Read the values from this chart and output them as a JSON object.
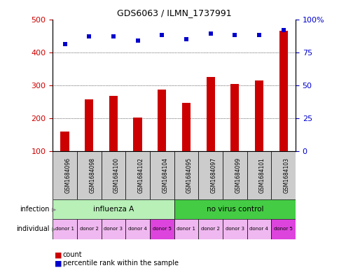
{
  "title": "GDS6063 / ILMN_1737991",
  "samples": [
    "GSM1684096",
    "GSM1684098",
    "GSM1684100",
    "GSM1684102",
    "GSM1684104",
    "GSM1684095",
    "GSM1684097",
    "GSM1684099",
    "GSM1684101",
    "GSM1684103"
  ],
  "counts": [
    160,
    258,
    268,
    202,
    287,
    246,
    326,
    303,
    315,
    465
  ],
  "percentiles": [
    81,
    87,
    87,
    84,
    88,
    85,
    89,
    88,
    88,
    92
  ],
  "ylim_left": [
    100,
    500
  ],
  "ylim_right": [
    0,
    100
  ],
  "yticks_left": [
    100,
    200,
    300,
    400,
    500
  ],
  "yticks_right": [
    0,
    25,
    50,
    75,
    100
  ],
  "grid_yticks": [
    200,
    300,
    400
  ],
  "infection_groups": [
    {
      "label": "influenza A",
      "start": 0,
      "end": 5,
      "color": "#b8f0b8"
    },
    {
      "label": "no virus control",
      "start": 5,
      "end": 10,
      "color": "#44cc44"
    }
  ],
  "individual_labels": [
    "donor 1",
    "donor 2",
    "donor 3",
    "donor 4",
    "donor 5",
    "donor 1",
    "donor 2",
    "donor 3",
    "donor 4",
    "donor 5"
  ],
  "individual_colors": [
    "#f0b8f0",
    "#f0b8f0",
    "#f0b8f0",
    "#f0b8f0",
    "#dd44dd",
    "#f0b8f0",
    "#f0b8f0",
    "#f0b8f0",
    "#f0b8f0",
    "#dd44dd"
  ],
  "bar_color": "#cc0000",
  "dot_color": "#0000cc",
  "bar_width": 0.35,
  "sample_box_color": "#cccccc",
  "legend_bar_color": "#cc0000",
  "legend_dot_color": "#0000cc",
  "left_tick_color": "#cc0000",
  "right_tick_color": "#0000cc"
}
